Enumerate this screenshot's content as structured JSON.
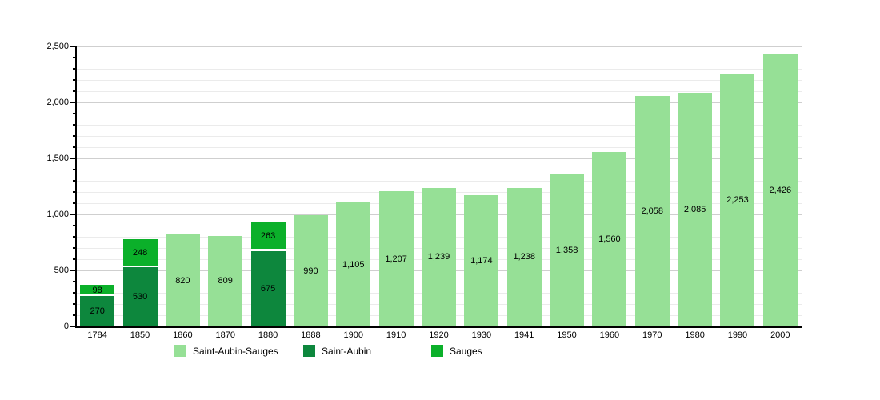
{
  "chart_data": {
    "type": "bar",
    "stacked": true,
    "title": "",
    "categories": [
      "1784",
      "1850",
      "1860",
      "1870",
      "1880",
      "1888",
      "1900",
      "1910",
      "1920",
      "1930",
      "1941",
      "1950",
      "1960",
      "1970",
      "1980",
      "1990",
      "2000"
    ],
    "series": [
      {
        "name": "Saint-Aubin-Sauges",
        "color": "#96e096",
        "values": [
          null,
          null,
          820,
          809,
          null,
          990,
          1105,
          1207,
          1239,
          1174,
          1238,
          1358,
          1560,
          2058,
          2085,
          2253,
          2426
        ]
      },
      {
        "name": "Saint-Aubin",
        "color": "#0d873d",
        "values": [
          270,
          530,
          null,
          null,
          675,
          null,
          null,
          null,
          null,
          null,
          null,
          null,
          null,
          null,
          null,
          null,
          null
        ]
      },
      {
        "name": "Sauges",
        "color": "#0bb02a",
        "values": [
          98,
          248,
          null,
          null,
          263,
          null,
          null,
          null,
          null,
          null,
          null,
          null,
          null,
          null,
          null,
          null,
          null
        ]
      }
    ],
    "ylim": [
      0,
      2500
    ],
    "ytick_major": 500,
    "ytick_minor": 100,
    "grid": true,
    "legend_position": "bottom",
    "colors": {
      "axis": "#000000",
      "grid_minor": "#ebebeb",
      "grid_major": "#cfcfcf",
      "text": "#000000",
      "segment_divider": "#ffffff",
      "background": "#ffffff"
    }
  }
}
